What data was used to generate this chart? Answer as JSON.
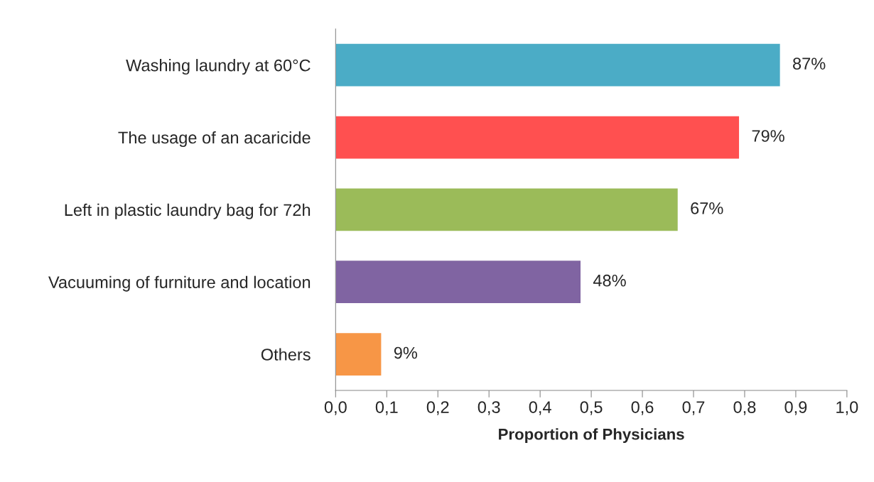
{
  "chart_data": {
    "type": "bar",
    "orientation": "horizontal",
    "xlabel": "Proportion of Physicians",
    "categories": [
      "Washing laundry at 60°C",
      "The usage of an acaricide",
      "Left in plastic laundry bag for 72h",
      "Vacuuming of furniture and location",
      "Others"
    ],
    "values": [
      0.87,
      0.79,
      0.67,
      0.48,
      0.09
    ],
    "colors": [
      "#4bacc6",
      "#ff5050",
      "#9bbb59",
      "#8064a2",
      "#f79646"
    ],
    "value_labels": [
      "87%",
      "79%",
      "67%",
      "48%",
      "9%"
    ],
    "xlim": [
      0,
      1
    ],
    "xticks": [
      {
        "value": 0,
        "label": "0,0"
      },
      {
        "value": 0.1,
        "label": "0,1"
      },
      {
        "value": 0.2,
        "label": "0,2"
      },
      {
        "value": 0.3,
        "label": "0,3"
      },
      {
        "value": 0.4,
        "label": "0,4"
      },
      {
        "value": 0.5,
        "label": "0,5"
      },
      {
        "value": 0.6,
        "label": "0,6"
      },
      {
        "value": 0.7,
        "label": "0,7"
      },
      {
        "value": 0.8,
        "label": "0,8"
      },
      {
        "value": 0.9,
        "label": "0,9"
      },
      {
        "value": 1,
        "label": "1,0"
      }
    ],
    "grid": false,
    "legend": false
  }
}
